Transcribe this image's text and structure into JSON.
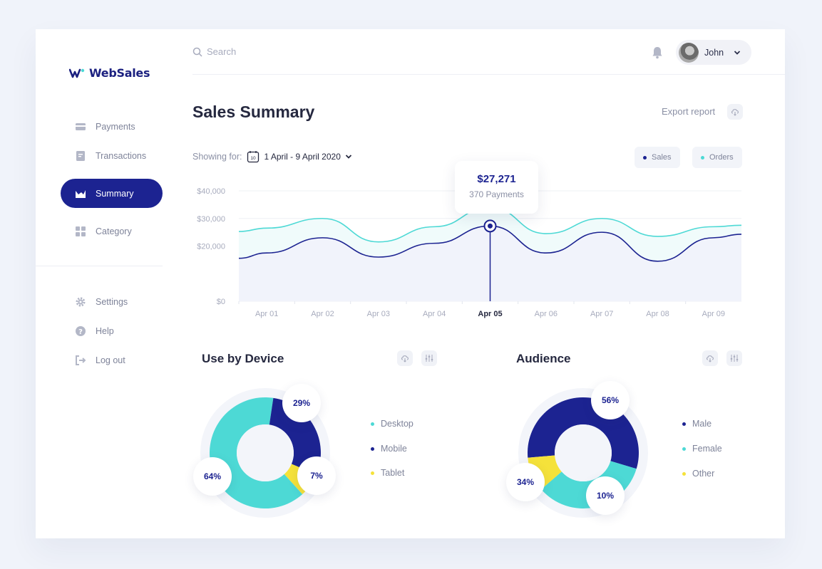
{
  "brand": {
    "name": "WebSales"
  },
  "sidebar": {
    "items": [
      {
        "label": "Payments",
        "icon": "card-icon"
      },
      {
        "label": "Transactions",
        "icon": "document-icon"
      },
      {
        "label": "Summary",
        "icon": "chart-icon",
        "active": true
      },
      {
        "label": "Category",
        "icon": "grid-icon"
      }
    ],
    "bottom_items": [
      {
        "label": "Settings",
        "icon": "gear-icon"
      },
      {
        "label": "Help",
        "icon": "help-icon"
      },
      {
        "label": "Log out",
        "icon": "logout-icon"
      }
    ]
  },
  "topbar": {
    "search_placeholder": "Search",
    "user_name": "John"
  },
  "header": {
    "title": "Sales Summary",
    "export_label": "Export report"
  },
  "filter": {
    "showing_label": "Showing for:",
    "date_range": "1 April - 9 April 2020",
    "calendar_day": "10"
  },
  "legend": {
    "sales": "Sales",
    "orders": "Orders"
  },
  "tooltip": {
    "value": "$27,271",
    "sub": "370 Payments"
  },
  "colors": {
    "primary": "#1c2391",
    "teal": "#4dd9d5",
    "yellow": "#f5e23a",
    "bg": "#f0f3fa"
  },
  "chart_data": [
    {
      "type": "line",
      "x": [
        "Apr 01",
        "Apr 02",
        "Apr 03",
        "Apr 04",
        "Apr 05",
        "Apr 06",
        "Apr 07",
        "Apr 08",
        "Apr 09"
      ],
      "y_ticks": [
        "$40,000",
        "$30,000",
        "$20,000",
        "$0"
      ],
      "ylim": [
        0,
        40000
      ],
      "highlight_index": 4,
      "series": [
        {
          "name": "Orders",
          "values": [
            26500,
            30000,
            21500,
            27000,
            34000,
            24500,
            30000,
            23500,
            27000
          ]
        },
        {
          "name": "Sales",
          "values": [
            17500,
            23000,
            16000,
            21000,
            27271,
            17500,
            25000,
            14500,
            23000
          ]
        }
      ]
    },
    {
      "type": "pie",
      "title": "Use by Device",
      "labels": [
        "Desktop",
        "Mobile",
        "Tablet"
      ],
      "values": [
        64,
        29,
        7
      ],
      "display": [
        "64%",
        "29%",
        "7%"
      ]
    },
    {
      "type": "pie",
      "title": "Audience",
      "labels": [
        "Male",
        "Female",
        "Other"
      ],
      "values": [
        56,
        34,
        10
      ],
      "display": [
        "56%",
        "34%",
        "10%"
      ]
    }
  ]
}
